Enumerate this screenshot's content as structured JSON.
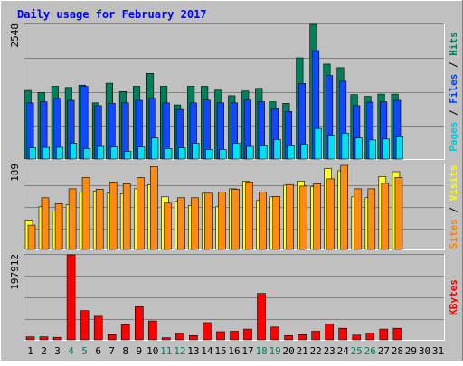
{
  "chart_data": [
    {
      "type": "bar",
      "title": "Daily usage for February 2017",
      "panel": "top",
      "y_max_label": "2548",
      "ylim": [
        0,
        2548
      ],
      "y_label_parts": [
        {
          "text": "Pages",
          "color": "#00c8e0"
        },
        {
          "text": " / ",
          "color": "#000000"
        },
        {
          "text": "Files",
          "color": "#0040ff"
        },
        {
          "text": " / ",
          "color": "#000000"
        },
        {
          "text": "Hits",
          "color": "#008060"
        }
      ],
      "series": [
        {
          "name": "Hits",
          "color": "#00805a",
          "values": [
            1298,
            1259,
            1376,
            1355,
            1399,
            1063,
            1435,
            1278,
            1376,
            1620,
            1376,
            1024,
            1376,
            1376,
            1303,
            1199,
            1288,
            1337,
            1085,
            1053,
            1916,
            2548,
            1797,
            1729,
            1219,
            1187,
            1229,
            1229
          ]
        },
        {
          "name": "Files",
          "color": "#1047ff",
          "values": [
            1063,
            1085,
            1150,
            1111,
            1376,
            1010,
            1055,
            1063,
            1111,
            1150,
            1063,
            939,
            1063,
            1116,
            1063,
            1063,
            1116,
            1085,
            949,
            900,
            1430,
            2054,
            1580,
            1473,
            1010,
            1077,
            1085,
            1111
          ]
        },
        {
          "name": "Pages",
          "color": "#00e0f0",
          "values": [
            210,
            220,
            222,
            300,
            200,
            240,
            230,
            145,
            230,
            400,
            200,
            210,
            300,
            180,
            180,
            300,
            240,
            250,
            370,
            250,
            280,
            580,
            450,
            490,
            400,
            360,
            380,
            420
          ]
        }
      ]
    },
    {
      "type": "bar",
      "panel": "middle",
      "y_max_label": "189",
      "ylim": [
        0,
        189
      ],
      "y_label_parts": [
        {
          "text": "Sites",
          "color": "#ff8000"
        },
        {
          "text": " / ",
          "color": "#000000"
        },
        {
          "text": "Visits",
          "color": "#ffff00"
        }
      ],
      "series": [
        {
          "name": "Visits",
          "color": "#ffff20",
          "values": [
            65,
            95,
            85,
            100,
            128,
            130,
            125,
            124,
            135,
            144,
            117,
            108,
            98,
            125,
            95,
            135,
            152,
            109,
            117,
            143,
            152,
            140,
            180,
            175,
            117,
            115,
            162,
            173
          ]
        },
        {
          "name": "Sites",
          "color": "#ff8c10",
          "values": [
            54,
            115,
            102,
            135,
            160,
            134,
            150,
            146,
            160,
            184,
            103,
            115,
            115,
            125,
            128,
            134,
            150,
            128,
            118,
            144,
            141,
            146,
            157,
            187,
            135,
            135,
            147,
            160
          ]
        }
      ]
    },
    {
      "type": "bar",
      "panel": "bottom",
      "y_max_label": "197912",
      "ylim": [
        0,
        197912
      ],
      "y_label_parts": [
        {
          "text": "KBytes",
          "color": "#ff0000"
        }
      ],
      "series": [
        {
          "name": "KBytes",
          "color": "#ff0000",
          "values": [
            7000,
            7000,
            6000,
            197912,
            68000,
            55000,
            12000,
            35000,
            77000,
            44000,
            5000,
            15000,
            10000,
            40000,
            19000,
            20000,
            25000,
            108000,
            30000,
            10000,
            12000,
            20000,
            37000,
            27000,
            11000,
            16000,
            25000,
            27000
          ]
        }
      ],
      "x_labels": [
        "1",
        "2",
        "3",
        "4",
        "5",
        "6",
        "7",
        "8",
        "9",
        "10",
        "11",
        "12",
        "13",
        "14",
        "15",
        "16",
        "17",
        "18",
        "19",
        "20",
        "21",
        "22",
        "23",
        "24",
        "25",
        "26",
        "27",
        "28",
        "29",
        "30",
        "31"
      ],
      "x_label_colors": [
        "#000000",
        "#000000",
        "#000000",
        "#008060",
        "#008060",
        "#000000",
        "#000000",
        "#000000",
        "#000000",
        "#000000",
        "#008060",
        "#008060",
        "#000000",
        "#000000",
        "#000000",
        "#000000",
        "#000000",
        "#008060",
        "#008060",
        "#000000",
        "#000000",
        "#000000",
        "#000000",
        "#000000",
        "#008060",
        "#008060",
        "#000000",
        "#000000",
        "#000000",
        "#000000",
        "#000000"
      ]
    }
  ],
  "colors": {
    "background": "#c0c0c0",
    "title": "#0000ff",
    "grid": "#808080"
  }
}
